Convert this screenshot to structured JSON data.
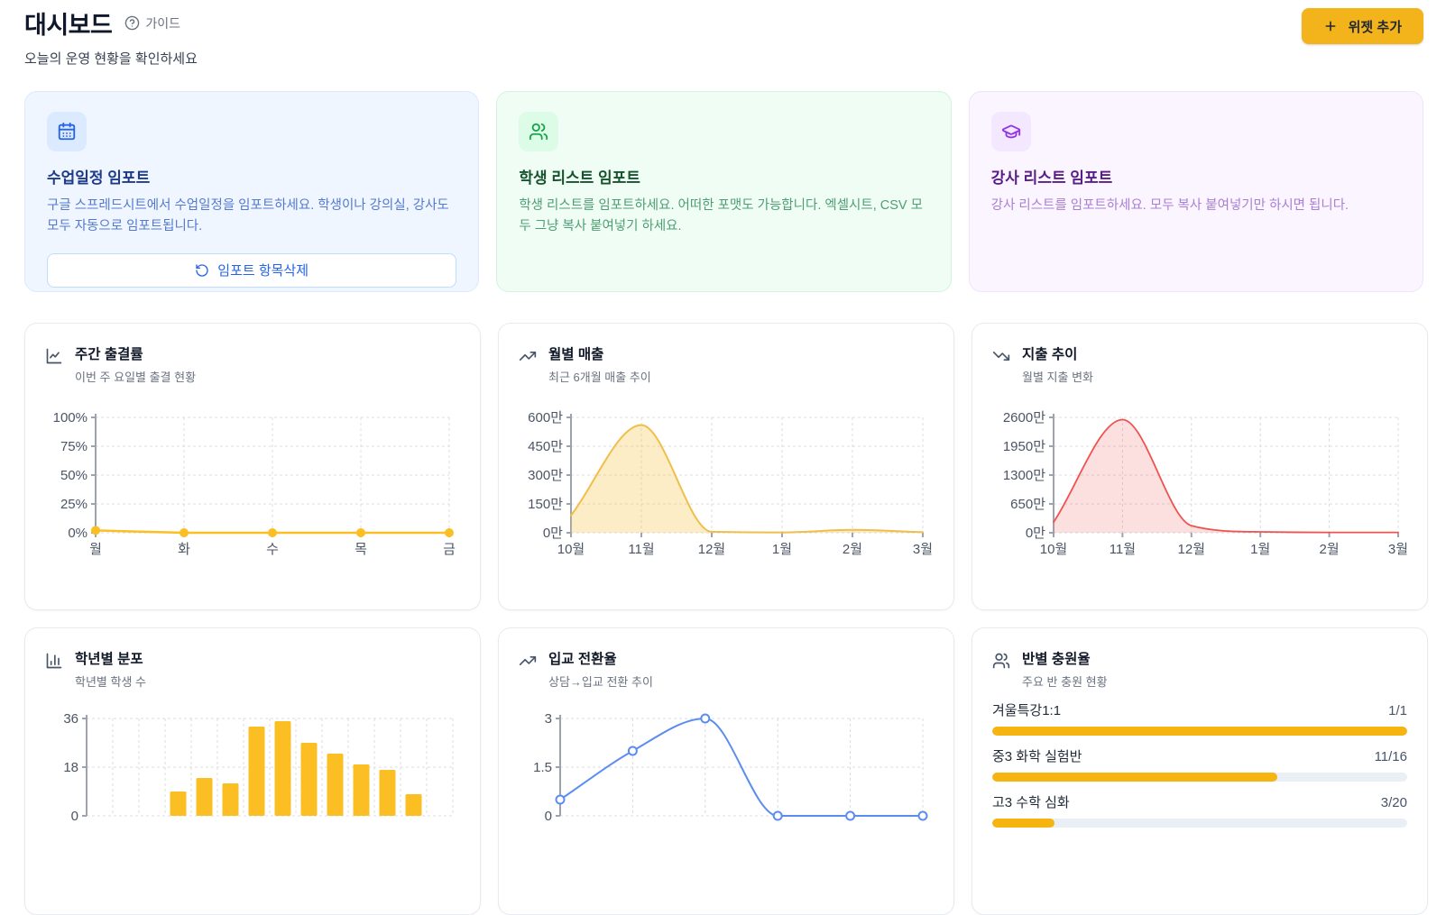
{
  "page": {
    "title": "대시보드",
    "guide_label": "가이드",
    "subtitle": "오늘의 운영 현황을 확인하세요",
    "add_widget_label": "위젯 추가"
  },
  "colors": {
    "accent_yellow": "#F2B31B",
    "chart_amber": "#FBBF24",
    "chart_amber_fill": "rgba(250,200,80,0.32)",
    "chart_red": "#EF5350",
    "chart_red_fill": "rgba(239,83,80,0.18)",
    "chart_blue": "#5B8DEF",
    "progress_fill": "#F5B40F",
    "progress_track": "#EAEFF5"
  },
  "import_cards": [
    {
      "icon": "calendar-icon",
      "title": "수업일정 임포트",
      "description": "구글 스프레드시트에서 수업일정을 임포트하세요. 학생이나 강의실, 강사도 모두 자동으로 임포트됩니다.",
      "action_label": "임포트 항목삭제"
    },
    {
      "icon": "users-icon",
      "title": "학생 리스트 임포트",
      "description": "학생 리스트를 임포트하세요. 어떠한 포맷도 가능합니다. 엑셀시트, CSV 모두 그냥 복사 붙여넣기 하세요."
    },
    {
      "icon": "graduation-cap-icon",
      "title": "강사 리스트 임포트",
      "description": "강사 리스트를 임포트하세요. 모두 복사 붙여넣기만 하시면 됩니다."
    }
  ],
  "chart_data": [
    {
      "id": "weekly-attendance",
      "type": "line",
      "title": "주간 출결률",
      "subtitle": "이번 주 요일별 출결 현황",
      "categories": [
        "월",
        "화",
        "수",
        "목",
        "금"
      ],
      "values": [
        2,
        0,
        0,
        0,
        0
      ],
      "yticks": [
        0,
        25,
        50,
        75,
        100
      ],
      "ytick_labels": [
        "0%",
        "25%",
        "50%",
        "75%",
        "100%"
      ],
      "ylim": [
        0,
        100
      ],
      "color": "#FBBF24",
      "marker": "filled",
      "smooth": false,
      "grid": true,
      "legend": false
    },
    {
      "id": "monthly-sales",
      "type": "area",
      "title": "월별 매출",
      "subtitle": "최근 6개월 매출 추이",
      "categories": [
        "10월",
        "11월",
        "12월",
        "1월",
        "2월",
        "3월"
      ],
      "values": [
        90,
        560,
        5,
        2,
        15,
        3
      ],
      "unit": "만",
      "yticks": [
        0,
        150,
        300,
        450,
        600
      ],
      "ytick_labels": [
        "0만",
        "150만",
        "300만",
        "450만",
        "600만"
      ],
      "ylim": [
        0,
        600
      ],
      "color": "#F0BE4A",
      "fill": "rgba(250,200,80,0.32)",
      "marker": "none",
      "smooth": true,
      "grid": true,
      "legend": false
    },
    {
      "id": "expense-trend",
      "type": "area",
      "title": "지출 추이",
      "subtitle": "월별 지출 변화",
      "categories": [
        "10월",
        "11월",
        "12월",
        "1월",
        "2월",
        "3월"
      ],
      "values": [
        240,
        2550,
        160,
        20,
        8,
        8
      ],
      "unit": "만",
      "yticks": [
        0,
        650,
        1300,
        1950,
        2600
      ],
      "ytick_labels": [
        "0만",
        "650만",
        "1300만",
        "1950만",
        "2600만"
      ],
      "ylim": [
        0,
        2600
      ],
      "color": "#EF5350",
      "fill": "rgba(239,83,80,0.18)",
      "marker": "none",
      "smooth": true,
      "grid": true,
      "legend": false
    },
    {
      "id": "grade-distribution",
      "type": "bar",
      "title": "학년별 분포",
      "subtitle": "학년별 학생 수",
      "values": [
        0,
        0,
        0,
        9,
        14,
        12,
        33,
        35,
        27,
        23,
        19,
        17,
        8,
        0
      ],
      "yticks": [
        0,
        18,
        36
      ],
      "ytick_labels": [
        "0",
        "18",
        "36"
      ],
      "ylim": [
        0,
        36
      ],
      "color": "#FBBF24",
      "grid": true,
      "legend": false,
      "note": "x-axis labels cut off below screenshot fold"
    },
    {
      "id": "conversion-rate",
      "type": "line",
      "title": "입교 전환율",
      "subtitle": "상담→입교 전환 추이",
      "values": [
        0.5,
        2,
        3,
        0,
        0,
        0
      ],
      "yticks": [
        0,
        1.5,
        3
      ],
      "ytick_labels": [
        "0",
        "1.5",
        "3"
      ],
      "ylim": [
        0,
        3
      ],
      "color": "#5B8DEF",
      "marker": "open",
      "smooth": true,
      "grid": true,
      "legend": false,
      "note": "x-axis labels cut off below screenshot fold"
    },
    {
      "id": "class-fill-rate",
      "type": "table",
      "title": "반별 충원율",
      "subtitle": "주요 반 충원 현황",
      "rows": [
        {
          "label": "겨울특강1:1",
          "value": "1/1",
          "current": 1,
          "capacity": 1
        },
        {
          "label": "중3 화학 실험반",
          "value": "11/16",
          "current": 11,
          "capacity": 16
        },
        {
          "label": "고3 수학 심화",
          "value": "3/20",
          "current": 3,
          "capacity": 20
        }
      ]
    }
  ]
}
